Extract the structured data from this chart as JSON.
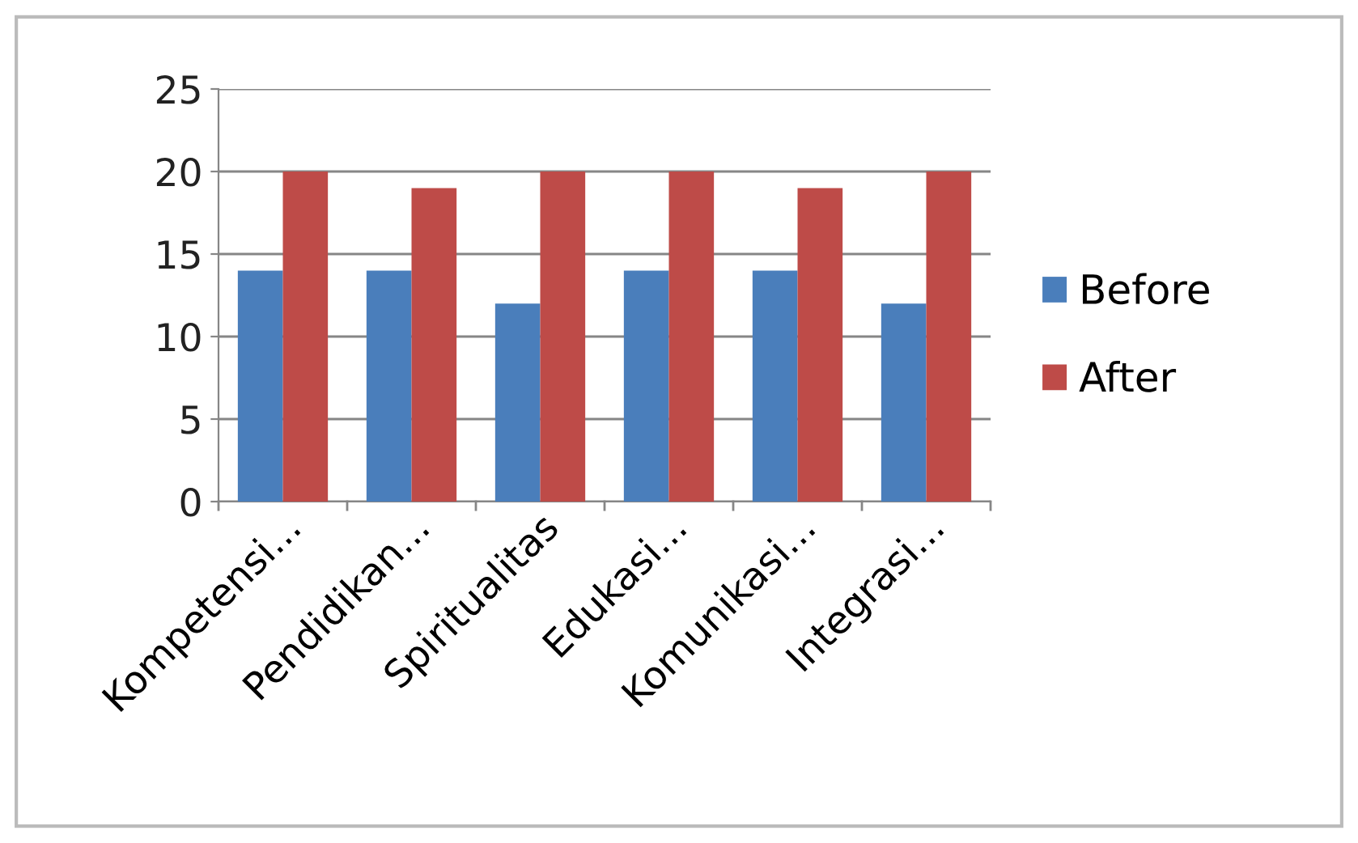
{
  "chart_data": {
    "type": "bar",
    "categories": [
      "Kompetensi...",
      "Pendidikan...",
      "Spiritualitas",
      "Edukasi...",
      "Komunikasi...",
      "Integrasi..."
    ],
    "series": [
      {
        "name": "Before",
        "color": "#4a7ebb",
        "values": [
          14,
          14,
          12,
          14,
          14,
          12
        ]
      },
      {
        "name": "After",
        "color": "#be4b48",
        "values": [
          20,
          19,
          20,
          20,
          19,
          20
        ]
      }
    ],
    "ylim": [
      0,
      25
    ],
    "yticks": [
      0,
      5,
      10,
      15,
      20,
      25
    ],
    "grid": "y",
    "legend": "right"
  }
}
